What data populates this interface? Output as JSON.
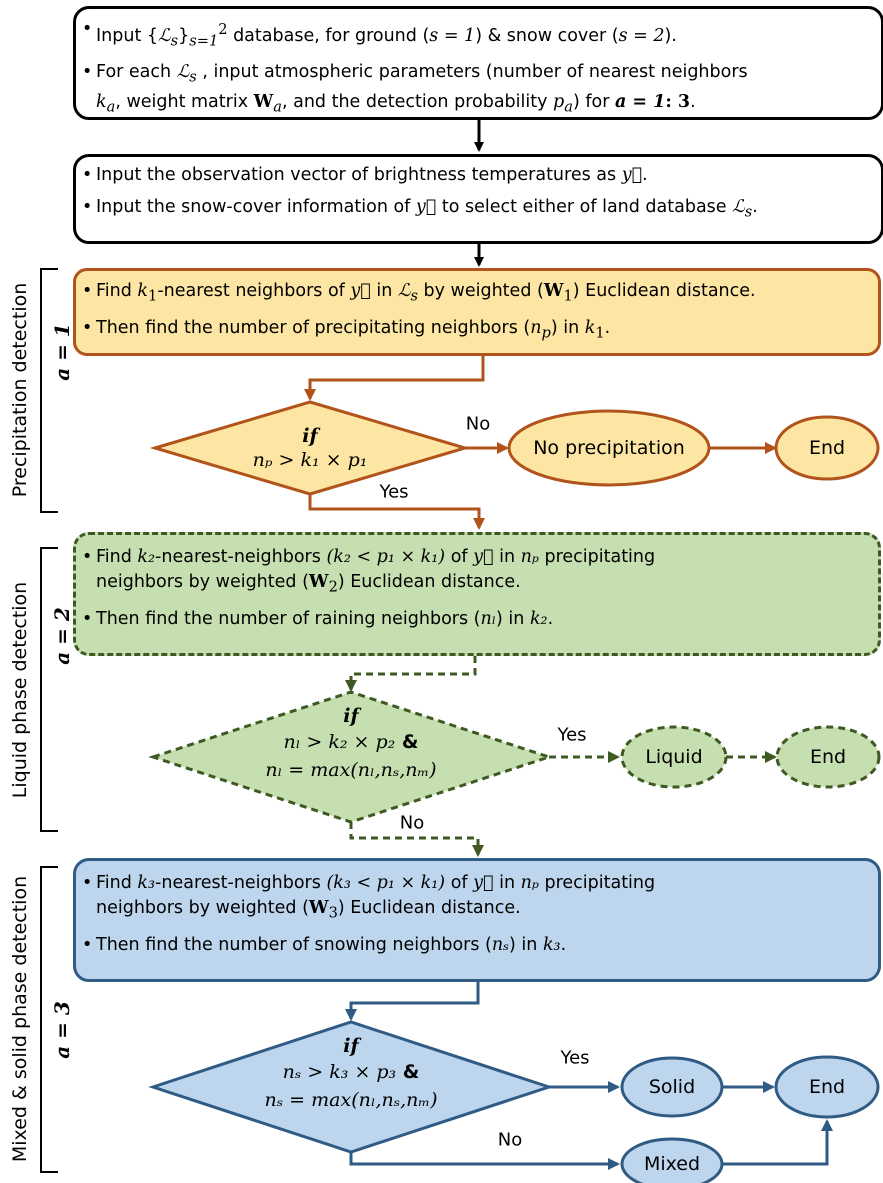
{
  "inputs": {
    "line1_a": "Input {",
    "line1_b": "ℒ",
    "line1_c": "s",
    "line1_d": "}",
    "line1_e": "s=1",
    "line1_f": "2",
    "line1_g": " database, for ground (",
    "line1_h": "s = 1",
    "line1_i": ") & snow cover (",
    "line1_j": "s = 2",
    "line1_k": ").",
    "line2_a": "For each ",
    "line2_b": " , input atmospheric parameters (number of nearest neighbors",
    "line3_a": "k",
    "line3_b": "a",
    "line3_c": ", weight matrix ",
    "line3_d": "W",
    "line3_e": "a",
    "line3_f": ", and the detection probability ",
    "line3_g": "p",
    "line3_h": "a",
    "line3_i": ") for ",
    "line3_j": "a = 1",
    "line3_k": ": 3",
    "line3_l": "."
  },
  "observation": {
    "line1_a": "Input the observation vector of brightness temperatures as ",
    "line1_b": "y⃗",
    "line1_c": ".",
    "line2_a": "Input the snow-cover information of ",
    "line2_b": "y⃗",
    "line2_c": " to select either of land database ",
    "line2_d": "ℒ",
    "line2_e": "s",
    "line2_f": "."
  },
  "stage1": {
    "side_label": "Precipitation detection",
    "a_label": "a = 1",
    "line1_a": "Find ",
    "line1_b": "k",
    "line1_c": "1",
    "line1_d": "-nearest neighbors of ",
    "line1_e": "y⃗",
    "line1_f": " in ",
    "line1_g": "ℒ",
    "line1_h": "s",
    "line1_i": " by weighted (",
    "line1_j": "W",
    "line1_k": "1",
    "line1_l": ") Euclidean distance.",
    "line2_a": "Then find the number of precipitating neighbors (",
    "line2_b": "n",
    "line2_c": "p",
    "line2_d": ") in ",
    "line2_e": "k",
    "line2_f": "1",
    "line2_g": ".",
    "decision_if": "if",
    "decision_cond": "nₚ > k₁ × p₁",
    "no_label": "No",
    "yes_label": "Yes",
    "outcome": "No precipitation",
    "end": "End"
  },
  "stage2": {
    "side_label": "Liquid phase detection",
    "a_label": "a = 2",
    "line1_a": "Find ",
    "line1_b": "k₂",
    "line1_c": "-nearest-neighbors ",
    "line1_d": "(k₂ < p₁ × k₁)",
    "line1_e": " of ",
    "line1_f": "y⃗",
    "line1_g": " in ",
    "line1_h": "nₚ",
    "line1_i": " precipitating",
    "line2_a": "neighbors by weighted (",
    "line2_b": "W",
    "line2_c": "2",
    "line2_d": ") Euclidean distance.",
    "line3_a": "Then find the number of raining neighbors (",
    "line3_b": "nₗ",
    "line3_c": ") in ",
    "line3_d": "k₂",
    "line3_e": ".",
    "decision_if": "if",
    "decision_cond1": "nₗ > k₂ × p₂",
    "decision_amp": " &",
    "decision_cond2": "nₗ = max(nₗ,nₛ,nₘ)",
    "yes_label": "Yes",
    "no_label": "No",
    "outcome": "Liquid",
    "end": "End"
  },
  "stage3": {
    "side_label": "Mixed & solid phase detection",
    "a_label": "a = 3",
    "line1_a": "Find ",
    "line1_b": "k₃",
    "line1_c": "-nearest-neighbors ",
    "line1_d": "(k₃ < p₁ × k₁)",
    "line1_e": " of ",
    "line1_f": "y⃗",
    "line1_g": " in ",
    "line1_h": "nₚ",
    "line1_i": " precipitating",
    "line2_a": "neighbors by weighted (",
    "line2_b": "W",
    "line2_c": "3",
    "line2_d": ") Euclidean distance.",
    "line3_a": "Then find the number of snowing neighbors (",
    "line3_b": "nₛ",
    "line3_c": ") in ",
    "line3_d": "k₃",
    "line3_e": ".",
    "decision_if": "if",
    "decision_cond1": "nₛ > k₃ × p₃",
    "decision_amp": " &",
    "decision_cond2": "nₛ = max(nₗ,nₛ,nₘ)",
    "yes_label": "Yes",
    "no_label": "No",
    "outcome_solid": "Solid",
    "outcome_mixed": "Mixed",
    "end": "End"
  },
  "colors": {
    "black": "#000000",
    "orange_border": "#b1541b",
    "orange_fill": "#fde5a3",
    "green_border": "#3e5a22",
    "green_fill": "#c6dfb1",
    "blue_border": "#2f5b84",
    "blue_fill": "#bdd6ee"
  }
}
